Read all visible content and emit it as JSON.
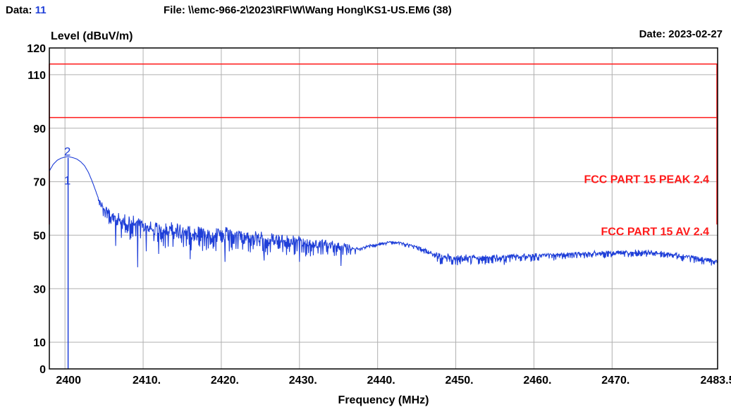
{
  "header": {
    "data_label": "Data:",
    "data_value": "11",
    "file_text": "File: \\\\emc-966-2\\2023\\RF\\W\\Wang Hong\\KS1-US.EM6  (38)",
    "date_text": "Date: 2023-02-27"
  },
  "colors": {
    "limit": "#ff1a1a",
    "trace": "#1f3fd8",
    "grid": "#b0b0b0"
  },
  "chart_data": {
    "type": "line",
    "ylabel": "Level (dBuV/m)",
    "xlabel": "Frequency (MHz)",
    "xlim": [
      2398,
      2483.5
    ],
    "ylim": [
      0,
      120
    ],
    "x_ticks": [
      {
        "v": 2400,
        "label": "2400"
      },
      {
        "v": 2410,
        "label": "2410."
      },
      {
        "v": 2420,
        "label": "2420."
      },
      {
        "v": 2430,
        "label": "2430."
      },
      {
        "v": 2440,
        "label": "2440."
      },
      {
        "v": 2450,
        "label": "2450."
      },
      {
        "v": 2460,
        "label": "2460."
      },
      {
        "v": 2470,
        "label": "2470."
      },
      {
        "v": 2483.5,
        "label": "2483.5"
      }
    ],
    "y_ticks": [
      {
        "v": 0,
        "label": "0"
      },
      {
        "v": 10,
        "label": "10"
      },
      {
        "v": 30,
        "label": "30"
      },
      {
        "v": 50,
        "label": "50"
      },
      {
        "v": 70,
        "label": "70"
      },
      {
        "v": 90,
        "label": "90"
      },
      {
        "v": 110,
        "label": "110"
      },
      {
        "v": 120,
        "label": "120"
      }
    ],
    "grid": true,
    "limits": [
      {
        "label": "FCC PART 15 PEAK 2.4",
        "value": 114
      },
      {
        "label": "FCC PART 15 AV 2.4",
        "value": 94
      }
    ],
    "limit_edges": {
      "x": [
        2398,
        2483.5
      ],
      "bottom": 54
    },
    "markers": [
      {
        "label": "1",
        "x": 2400.4,
        "y": 0
      },
      {
        "label": "2",
        "x": 2400.4,
        "y": 79
      }
    ],
    "series": [
      {
        "envelope": [
          [
            2398.0,
            74
          ],
          [
            2398.5,
            76.5
          ],
          [
            2399.0,
            78
          ],
          [
            2399.5,
            78.8
          ],
          [
            2400.0,
            79.2
          ],
          [
            2400.4,
            79.4
          ],
          [
            2401.0,
            79
          ],
          [
            2401.5,
            78.5
          ],
          [
            2402.0,
            77.5
          ],
          [
            2402.5,
            76
          ],
          [
            2403.0,
            73.5
          ],
          [
            2403.5,
            70
          ],
          [
            2404.0,
            66
          ],
          [
            2404.5,
            63
          ],
          [
            2405.0,
            61
          ],
          [
            2405.5,
            60
          ],
          [
            2406.0,
            59
          ],
          [
            2407.0,
            57.5
          ],
          [
            2408.0,
            57
          ],
          [
            2410.0,
            56
          ],
          [
            2412.0,
            55
          ],
          [
            2415.0,
            54
          ],
          [
            2418.0,
            53
          ],
          [
            2420.0,
            52.5
          ],
          [
            2423.0,
            51.5
          ],
          [
            2426.0,
            50.5
          ],
          [
            2429.0,
            49.5
          ],
          [
            2432.0,
            48.5
          ],
          [
            2435.0,
            47.5
          ],
          [
            2436.0,
            46.5
          ],
          [
            2437.0,
            45.5
          ],
          [
            2438.0,
            45.5
          ],
          [
            2439.0,
            46.5
          ],
          [
            2440.0,
            47
          ],
          [
            2441.0,
            47.6
          ],
          [
            2442.0,
            47.8
          ],
          [
            2443.0,
            47.5
          ],
          [
            2444.0,
            46.8
          ],
          [
            2445.0,
            46
          ],
          [
            2446.0,
            45
          ],
          [
            2447.0,
            44
          ],
          [
            2448.0,
            43
          ],
          [
            2450.0,
            42.5
          ],
          [
            2453.0,
            42.5
          ],
          [
            2456.0,
            42.5
          ],
          [
            2459.0,
            43
          ],
          [
            2462.0,
            43.2
          ],
          [
            2465.0,
            43.5
          ],
          [
            2468.0,
            44
          ],
          [
            2470.0,
            44
          ],
          [
            2472.0,
            44.3
          ],
          [
            2474.0,
            44.5
          ],
          [
            2476.0,
            44
          ],
          [
            2478.0,
            43.3
          ],
          [
            2480.0,
            42.5
          ],
          [
            2482.0,
            41.5
          ],
          [
            2483.5,
            41
          ]
        ],
        "noise": [
          [
            2404.0,
            0
          ],
          [
            2405.0,
            5
          ],
          [
            2410.0,
            8
          ],
          [
            2420.0,
            7
          ],
          [
            2430.0,
            6
          ],
          [
            2436.0,
            4
          ],
          [
            2438.0,
            1
          ],
          [
            2442.0,
            1
          ],
          [
            2446.0,
            1.5
          ],
          [
            2448.0,
            3.5
          ],
          [
            2455.0,
            3
          ],
          [
            2465.0,
            2
          ],
          [
            2483.5,
            2
          ]
        ],
        "dips": [
          [
            2406.5,
            46
          ],
          [
            2407.2,
            49
          ],
          [
            2409.3,
            38
          ],
          [
            2410.4,
            44
          ],
          [
            2412.0,
            43
          ],
          [
            2416.0,
            41
          ],
          [
            2420.5,
            40
          ],
          [
            2425.5,
            40.5
          ],
          [
            2430.0,
            40
          ],
          [
            2435.3,
            38.5
          ],
          [
            2449.5,
            39
          ],
          [
            2452.0,
            39.5
          ]
        ]
      }
    ]
  }
}
